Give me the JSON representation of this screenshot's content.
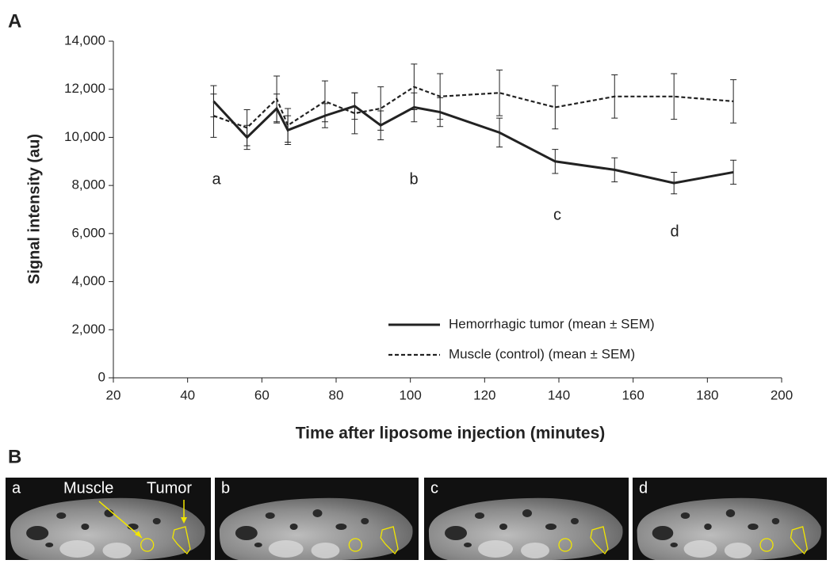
{
  "panel_a_label": "A",
  "chart_data": {
    "type": "line",
    "x_label": "Time after liposome injection (minutes)",
    "y_label": "Signal intensity (au)",
    "x": [
      47,
      56,
      64,
      67,
      77,
      85,
      92,
      101,
      108,
      124,
      139,
      155,
      171,
      187
    ],
    "series": [
      {
        "name": "Hemorrhagic tumor (mean ± SEM)",
        "color": "#222222",
        "dash": false,
        "values": [
          11500,
          10000,
          11200,
          10300,
          10900,
          11300,
          10500,
          11250,
          11050,
          10200,
          9000,
          8650,
          8100,
          8550
        ],
        "errors": [
          650,
          500,
          600,
          600,
          500,
          550,
          600,
          600,
          600,
          600,
          500,
          500,
          450,
          500
        ]
      },
      {
        "name": "Muscle (control) (mean ± SEM)",
        "color": "#222222",
        "dash": true,
        "values": [
          10900,
          10400,
          11600,
          10500,
          11500,
          11000,
          11200,
          12100,
          11700,
          11850,
          11250,
          11700,
          11700,
          11500
        ],
        "errors": [
          900,
          750,
          950,
          700,
          850,
          850,
          900,
          950,
          950,
          950,
          900,
          900,
          950,
          900
        ]
      }
    ],
    "annotations": [
      "a",
      "b",
      "c",
      "d"
    ],
    "xlim": [
      20,
      200
    ],
    "xticks": [
      20,
      40,
      60,
      80,
      100,
      120,
      140,
      160,
      180,
      200
    ],
    "ylim": [
      0,
      14000
    ],
    "yticks": [
      0,
      {
        "value": 2000,
        "label": "2,000"
      },
      {
        "value": 4000,
        "label": "4,000"
      },
      {
        "value": 6000,
        "label": "6,000"
      },
      {
        "value": 8000,
        "label": "8,000"
      },
      {
        "value": 10000,
        "label": "10,000"
      },
      {
        "value": 12000,
        "label": "12,000"
      },
      {
        "value": 14000,
        "label": "14,000"
      }
    ],
    "legend": "lower-right"
  },
  "panel_b": {
    "label": "B",
    "images": [
      {
        "label": "a"
      },
      {
        "label": "b"
      },
      {
        "label": "c"
      },
      {
        "label": "d"
      }
    ],
    "muscle_label": "Muscle",
    "tumor_label": "Tumor"
  }
}
